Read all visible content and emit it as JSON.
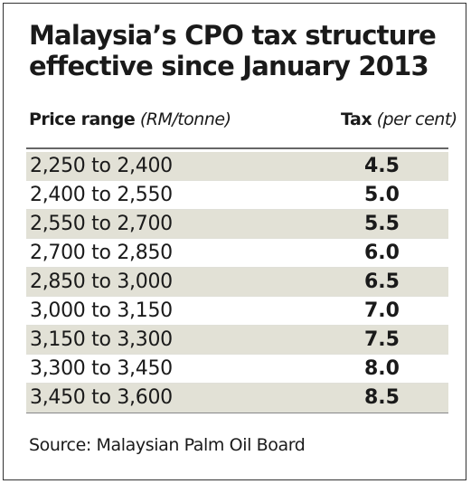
{
  "chart_data": {
    "type": "table",
    "title_lines": [
      "Malaysia’s CPO tax structure",
      "effective since January 2013"
    ],
    "columns": {
      "range_label": "Price range",
      "range_unit": "(RM/tonne)",
      "tax_label": "Tax",
      "tax_unit": "(per cent)"
    },
    "rows": [
      {
        "range": "2,250 to 2,400",
        "tax": "4.5",
        "shaded": true
      },
      {
        "range": "2,400 to 2,550",
        "tax": "5.0",
        "shaded": false
      },
      {
        "range": "2,550 to 2,700",
        "tax": "5.5",
        "shaded": true
      },
      {
        "range": "2,700 to 2,850",
        "tax": "6.0",
        "shaded": false
      },
      {
        "range": "2,850 to 3,000",
        "tax": "6.5",
        "shaded": true
      },
      {
        "range": "3,000 to 3,150",
        "tax": "7.0",
        "shaded": false
      },
      {
        "range": "3,150 to 3,300",
        "tax": "7.5",
        "shaded": true
      },
      {
        "range": "3,300 to 3,450",
        "tax": "8.0",
        "shaded": false
      },
      {
        "range": "3,450 to 3,600",
        "tax": "8.5",
        "shaded": true
      }
    ],
    "source": "Source: Malaysian Palm Oil Board"
  },
  "colors": {
    "text": "#1a1a1a",
    "row_shade": "#e2e1d6",
    "frame": "#333333"
  }
}
